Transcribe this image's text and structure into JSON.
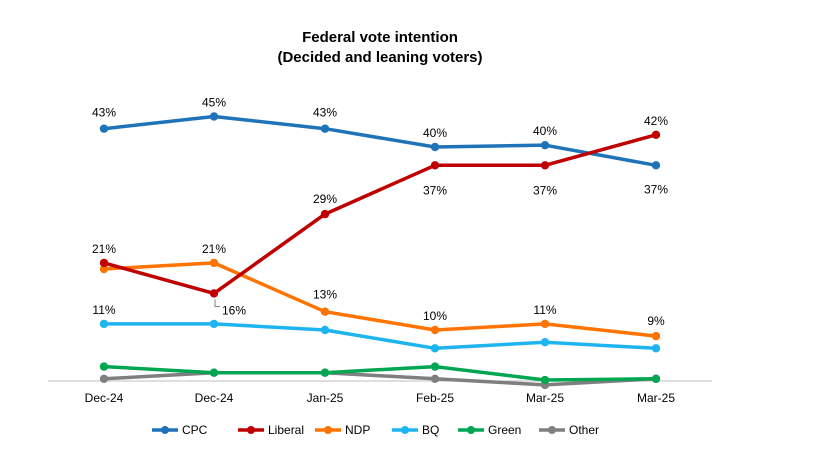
{
  "chart_data": {
    "type": "line",
    "title": "Federal vote intention",
    "subtitle": "(Decided and leaning voters)",
    "categories": [
      "Dec-24",
      "Dec-24",
      "Jan-25",
      "Feb-25",
      "Mar-25",
      "Mar-25"
    ],
    "ylim": [
      0,
      50
    ],
    "grid": false,
    "legend": "bottom",
    "series": [
      {
        "name": "CPC",
        "color": "#1F73B8",
        "values": [
          43,
          45,
          43,
          40,
          40.3,
          37
        ],
        "labels": [
          "43%",
          "45%",
          "43%",
          "40%",
          "40%",
          "37%"
        ]
      },
      {
        "name": "Liberal",
        "color": "#C00000",
        "values": [
          21,
          16,
          29,
          37,
          37,
          42
        ],
        "labels": [
          "21%",
          "16%",
          "29%",
          "37%",
          "37%",
          "42%"
        ]
      },
      {
        "name": "NDP",
        "color": "#FF7300",
        "values": [
          20,
          21,
          13,
          10,
          11,
          9
        ],
        "labels": [
          "",
          "21%",
          "13%",
          "10%",
          "11%",
          "9%"
        ]
      },
      {
        "name": "BQ",
        "color": "#1EB4F0",
        "values": [
          11,
          11,
          10,
          7,
          8,
          7
        ],
        "labels": [
          "11%",
          "",
          "",
          "",
          "",
          ""
        ]
      },
      {
        "name": "Green",
        "color": "#00A651",
        "values": [
          4,
          3,
          3,
          4,
          1.8,
          2
        ],
        "labels": [
          "",
          "",
          "",
          "",
          "",
          ""
        ]
      },
      {
        "name": "Other",
        "color": "#7F7F7F",
        "values": [
          2,
          3,
          3,
          2,
          1,
          2
        ],
        "labels": [
          "",
          "",
          "",
          "",
          "",
          ""
        ]
      }
    ]
  }
}
